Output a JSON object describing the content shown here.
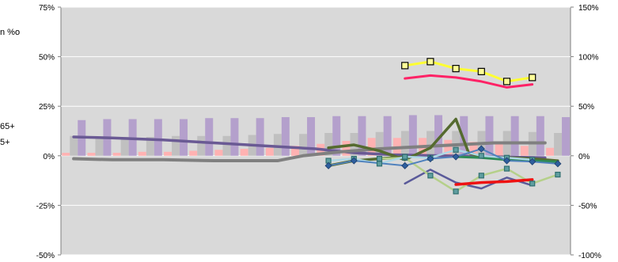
{
  "chart_data": {
    "type": "bar",
    "title": "",
    "xlabel": "",
    "ylabel": "",
    "left_axis": {
      "ticks": [
        "75%",
        "50%",
        "25%",
        "0%",
        "-25%",
        "-50%"
      ],
      "values": [
        75,
        50,
        25,
        0,
        -25,
        -50
      ],
      "range": [
        -50,
        75
      ]
    },
    "right_axis": {
      "ticks": [
        "150%",
        "100%",
        "50%",
        "0%",
        "-50%",
        "-100%"
      ],
      "values": [
        150,
        100,
        50,
        0,
        -50,
        -100
      ],
      "range": [
        -100,
        150
      ]
    },
    "clipped_labels": [
      "n %o",
      "65+",
      "5+"
    ],
    "plot_background": "#d9d9d9",
    "grid": true,
    "categories": 20,
    "bar_series": [
      {
        "color": "#ffb2b2",
        "values": [
          1.5,
          1.5,
          1.5,
          2,
          2,
          2.5,
          3,
          3.5,
          4,
          5,
          6,
          7.5,
          9,
          9,
          9,
          8,
          7,
          6,
          5,
          4
        ]
      },
      {
        "color": "#c0c0c0",
        "values": [
          10,
          9.5,
          9.5,
          9.5,
          10,
          10,
          10,
          10.5,
          11,
          11,
          11.5,
          11.5,
          12,
          12.5,
          12.5,
          12.5,
          12.5,
          12.5,
          12,
          11.5
        ]
      },
      {
        "color": "#b4a0cc",
        "values": [
          18,
          18.5,
          18.5,
          18.5,
          18.5,
          19,
          19,
          19,
          19.5,
          19.5,
          20,
          20,
          20,
          20.5,
          20.5,
          20,
          20,
          20,
          20,
          19.5
        ]
      }
    ],
    "line_series": [
      {
        "color": "#6a5a94",
        "width": 3.5,
        "axis": "left",
        "x": [
          0.5,
          2,
          4,
          6,
          8,
          10,
          11.5,
          13,
          15,
          17,
          19
        ],
        "values": [
          9.5,
          9,
          8,
          6.5,
          5,
          3.5,
          1.5,
          0.5,
          0,
          -0.5,
          -1
        ]
      },
      {
        "color": "#808080",
        "width": 4,
        "axis": "left",
        "x": [
          0.5,
          2,
          4,
          6,
          7.5,
          8.5,
          9.5,
          11,
          12.5,
          14,
          15.5,
          17,
          18,
          19
        ],
        "values": [
          -1.5,
          -2,
          -2,
          -2.5,
          -2.5,
          -2.5,
          0,
          2,
          3.5,
          4.5,
          5.5,
          6.5,
          6.5,
          6.5
        ]
      },
      {
        "color": "#ffff33",
        "width": 3,
        "axis": "right",
        "marker": "square",
        "x": [
          13.5,
          14.5,
          15.5,
          16.5,
          17.5,
          18.5
        ],
        "values": [
          91,
          95,
          88,
          85,
          75,
          79
        ]
      },
      {
        "color": "#ff2266",
        "width": 3,
        "axis": "right",
        "x": [
          13.5,
          14.5,
          15.5,
          16.5,
          17.5,
          18.5
        ],
        "values": [
          78,
          81,
          79,
          75,
          69,
          72
        ]
      },
      {
        "color": "#556b2f",
        "width": 3.5,
        "axis": "right",
        "x": [
          10.5,
          11.5,
          12.5,
          13.5,
          14.5,
          15.5,
          16,
          16.5,
          17.5,
          18.5,
          19.5
        ],
        "values": [
          8,
          11,
          5,
          -4,
          8,
          37,
          3,
          -1,
          -2,
          -3,
          -5
        ]
      },
      {
        "color": "#556b2f",
        "width": 3.5,
        "axis": "right",
        "x": [
          10.5,
          11.5,
          12.5,
          13.5
        ],
        "values": [
          -10,
          -5,
          -3,
          -1
        ]
      },
      {
        "color": "#2e8b57",
        "width": 3,
        "axis": "right",
        "x": [
          15.5,
          16.5,
          17.5,
          18.5,
          19.5
        ],
        "values": [
          -1,
          -2,
          -4,
          -5,
          -6
        ]
      },
      {
        "color": "#5a5a9a",
        "width": 2.5,
        "axis": "right",
        "x": [
          13.5,
          14.5,
          15.5,
          16.5,
          17.5,
          18.5
        ],
        "values": [
          -28,
          -14,
          -27,
          -33,
          -22,
          -30
        ]
      },
      {
        "color": "#b5d08a",
        "width": 2.5,
        "axis": "right",
        "marker": "square",
        "x": [
          12.5,
          13.5,
          14.5,
          15.5,
          16.5,
          17.5,
          18.5,
          19.5
        ],
        "values": [
          -3,
          -2,
          -20,
          -36,
          -20,
          -13,
          -28,
          -19
        ]
      },
      {
        "color": "#add8e6",
        "width": 2.5,
        "axis": "right",
        "marker": "square",
        "x": [
          10.5,
          11.5,
          12.5,
          13.5,
          14.5,
          15.5,
          16.5,
          17.5,
          18.5
        ],
        "values": [
          -5,
          -3,
          -8,
          -1,
          -2,
          6,
          0,
          -2,
          -4
        ]
      },
      {
        "color": "#4f81bd",
        "width": 2,
        "axis": "right",
        "marker": "diamond",
        "x": [
          10.5,
          11.5,
          13.5,
          14.5,
          15.5,
          16.5,
          17.5,
          18.5,
          19.5
        ],
        "values": [
          -10,
          -5,
          -10,
          -3,
          -1,
          7,
          -5,
          -6,
          -8
        ]
      },
      {
        "color": "#ee1111",
        "width": 3.5,
        "axis": "right",
        "x": [
          15.5,
          16.5,
          17.5,
          18.5
        ],
        "values": [
          -29,
          -27,
          -26,
          -24
        ]
      }
    ]
  }
}
